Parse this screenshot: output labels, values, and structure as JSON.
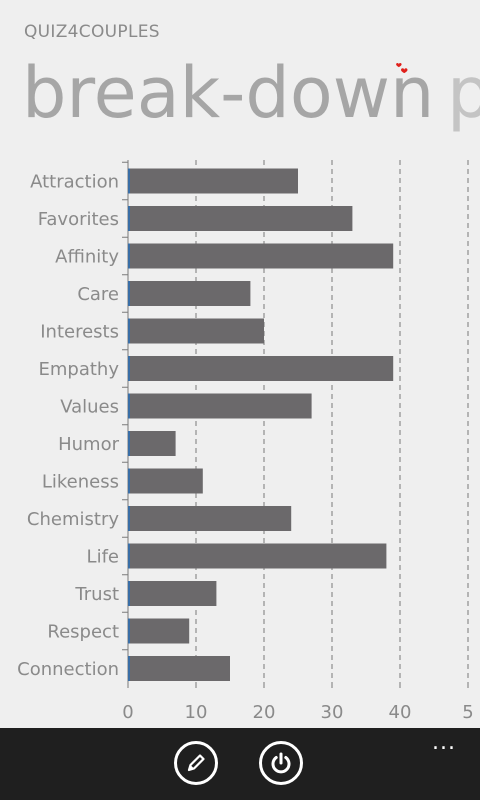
{
  "app": {
    "title": "QUIZ4COUPLES"
  },
  "pivot": {
    "active_header": "break-down",
    "next_header": "p"
  },
  "icons": {
    "hearts": "hearts-icon",
    "edit": "pencil-icon",
    "power": "power-icon",
    "more": "ellipsis-icon"
  },
  "colors": {
    "bar": "#6b696b",
    "bar_edge": "#3a6ea5",
    "heart": "#e0201b",
    "appbar": "#1f1f1f"
  },
  "appbar": {
    "more_label": "..."
  },
  "chart_data": {
    "type": "bar",
    "orientation": "horizontal",
    "categories": [
      "Attraction",
      "Favorites",
      "Affinity",
      "Care",
      "Interests",
      "Empathy",
      "Values",
      "Humor",
      "Likeness",
      "Chemistry",
      "Life",
      "Trust",
      "Respect",
      "Connection"
    ],
    "values": [
      25,
      33,
      39,
      18,
      20,
      39,
      27,
      7,
      11,
      24,
      38,
      13,
      9,
      15
    ],
    "x_ticks": [
      "0",
      "10",
      "20",
      "30",
      "40",
      "5"
    ],
    "xlim": [
      0,
      50
    ],
    "grid": "vertical-dashed",
    "title": "",
    "xlabel": "",
    "ylabel": ""
  }
}
